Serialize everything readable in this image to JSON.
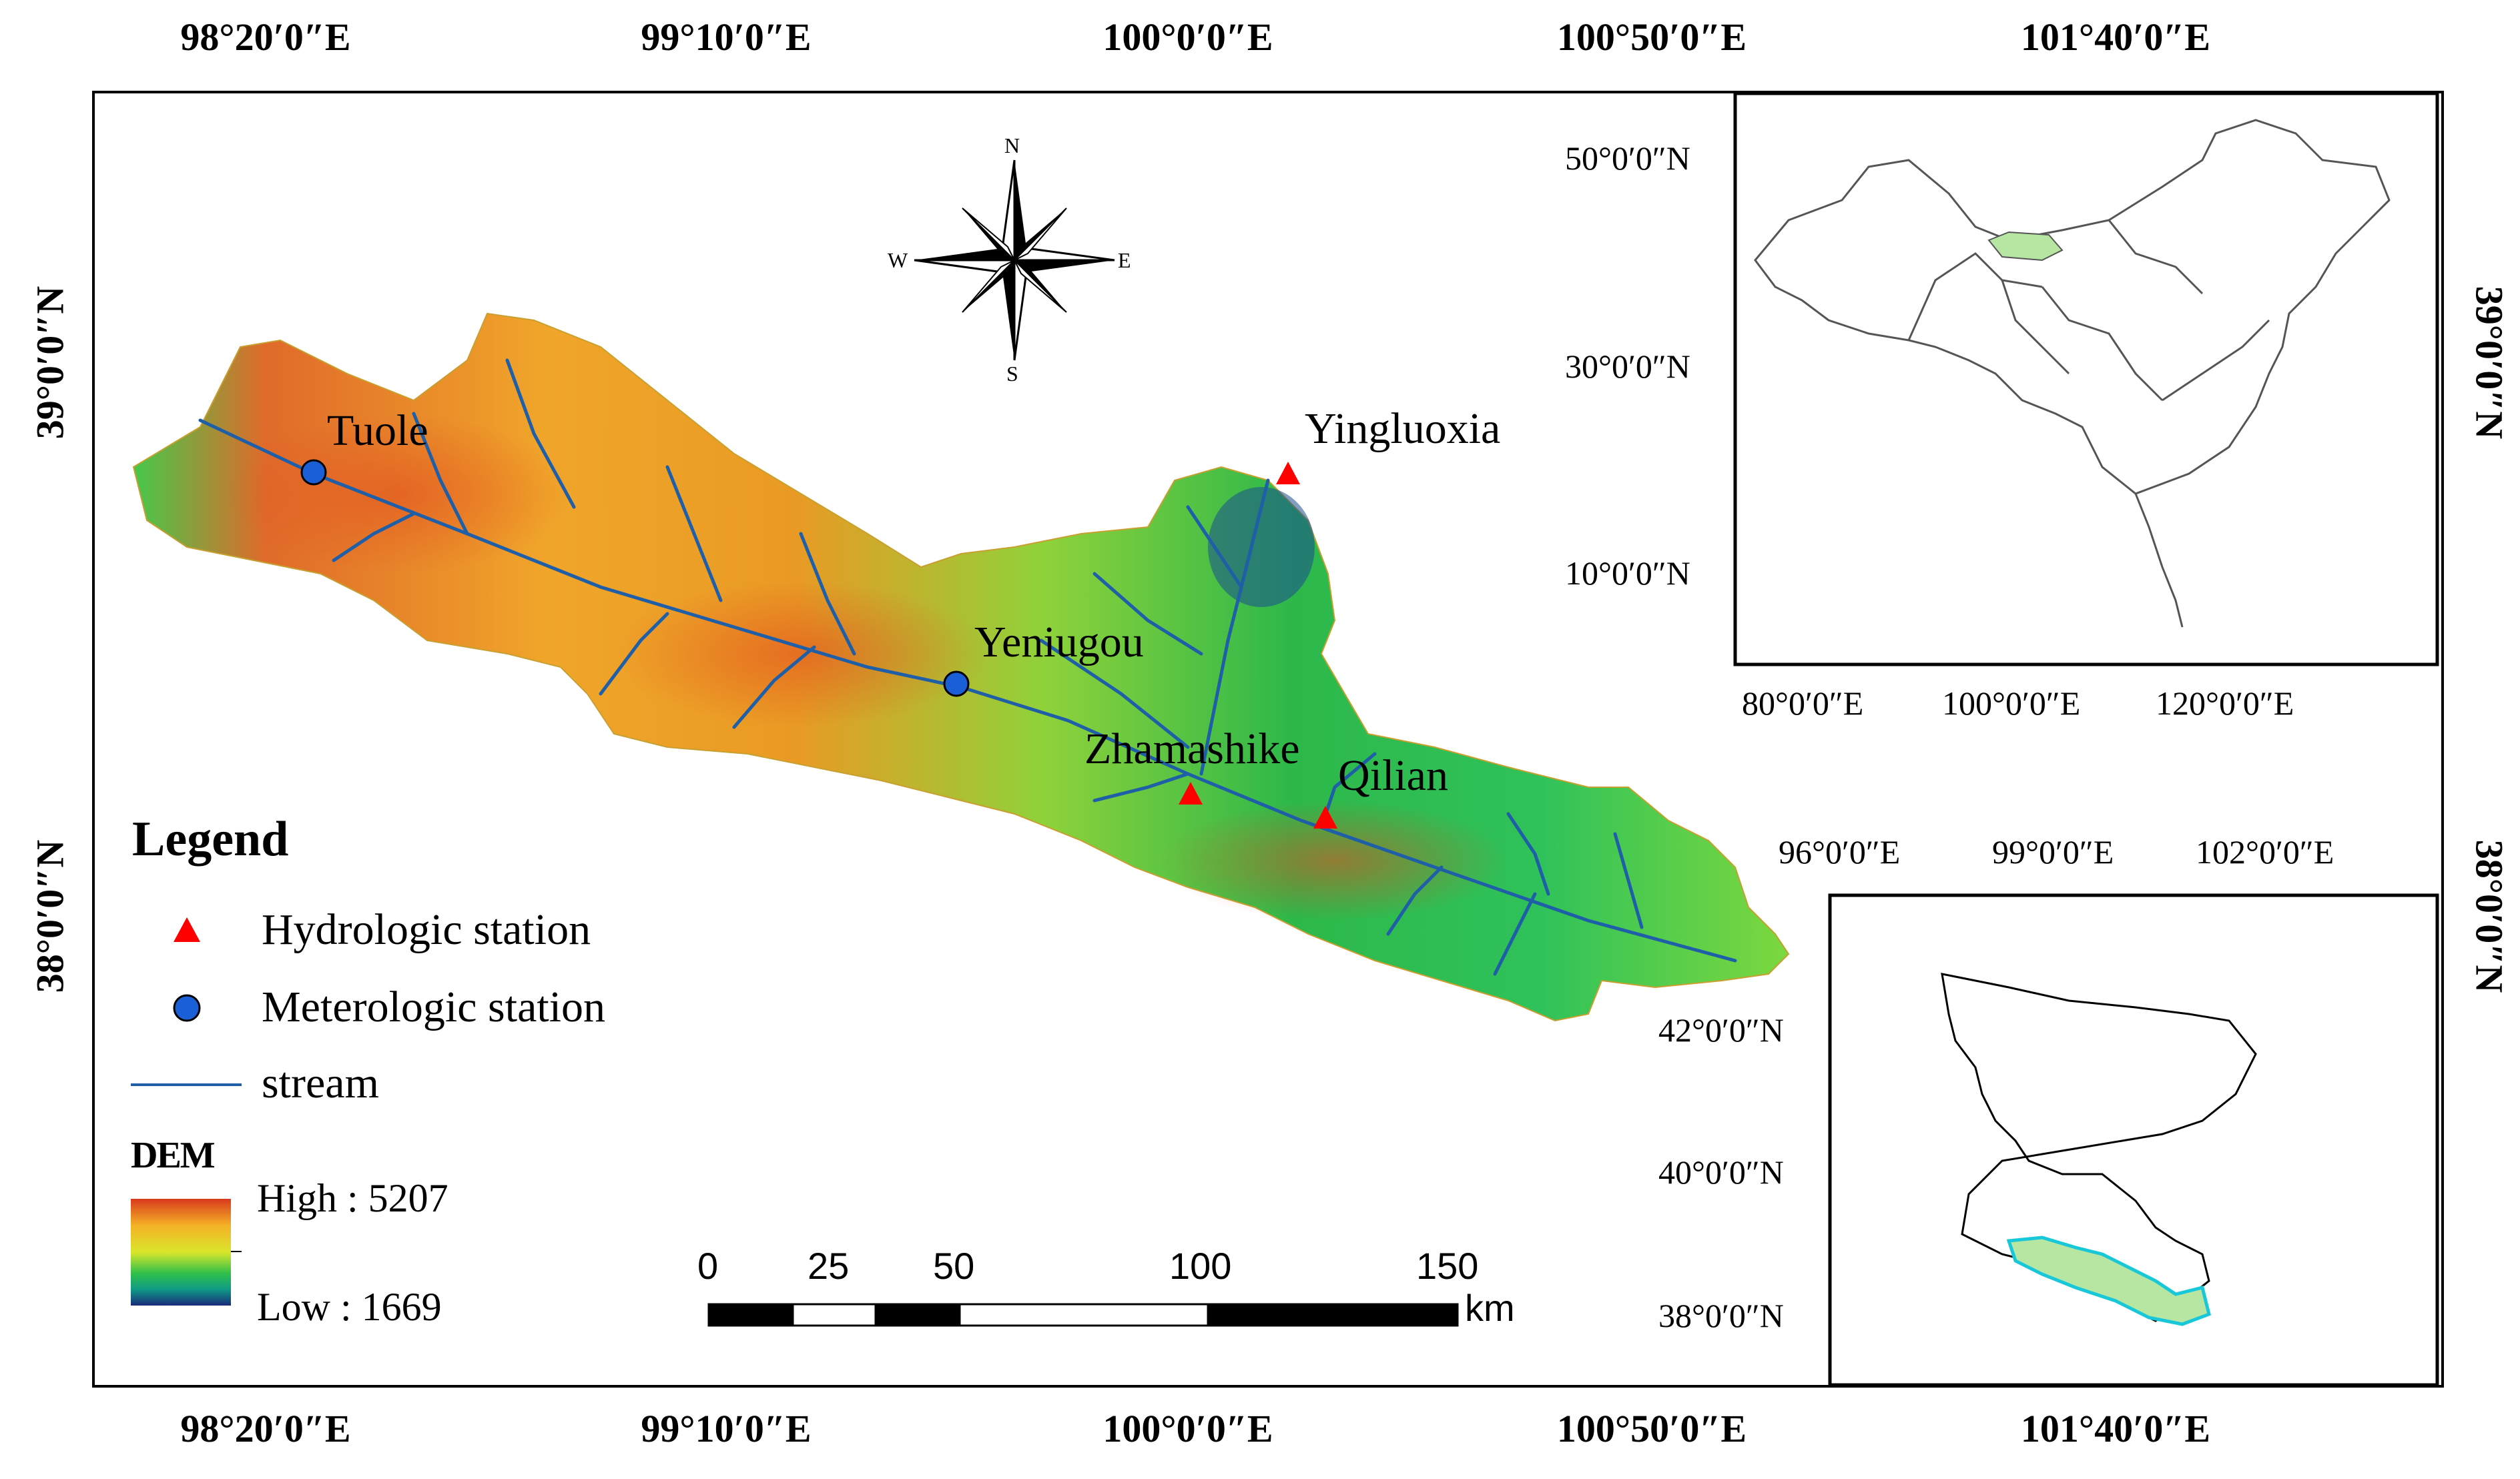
{
  "map": {
    "top_lon_labels": [
      "98°20′0″E",
      "99°10′0″E",
      "100°0′0″E",
      "100°50′0″E",
      "101°40′0″E"
    ],
    "bottom_lon_labels": [
      "98°20′0″E",
      "99°10′0″E",
      "100°0′0″E",
      "100°50′0″E",
      "101°40′0″E"
    ],
    "left_lat_labels": [
      "39°0′0″N",
      "38°0′0″N"
    ],
    "right_lat_labels": [
      "39°0′0″N",
      "38°0′0″N"
    ],
    "stations": {
      "tuole": "Tuole",
      "yingluoxia": "Yingluoxia",
      "yeniugou": "Yeniugou",
      "zhamashike": "Zhamashike",
      "qilian": "Qilian"
    },
    "north_arrow": {
      "n": "N",
      "s": "S",
      "e": "E",
      "w": "W"
    },
    "scale_bar": {
      "ticks": [
        "0",
        "25",
        "50",
        "100",
        "150"
      ],
      "unit": "km"
    }
  },
  "legend": {
    "title": "Legend",
    "hydrologic": "Hydrologic station",
    "meteorologic": "Meterologic station",
    "stream": "stream",
    "dem_title": "DEM",
    "dem_high": "High : 5207",
    "dem_low": "Low : 1669",
    "dem_high_value": 5207,
    "dem_low_value": 1669
  },
  "inset_china": {
    "lat_labels": [
      "50°0′0″N",
      "30°0′0″N",
      "10°0′0″N"
    ],
    "lon_labels": [
      "80°0′0″E",
      "100°0′0″E",
      "120°0′0″E"
    ]
  },
  "inset_region": {
    "lon_labels": [
      "96°0′0″E",
      "99°0′0″E",
      "102°0′0″E"
    ],
    "lat_labels": [
      "42°0′0″N",
      "40°0′0″N",
      "38°0′0″N"
    ]
  },
  "colors": {
    "hydrologic_marker": "#ff0000",
    "meteorologic_marker": "#1a5fd6",
    "stream": "#1f5fa8",
    "dem_high": "#d8391c",
    "dem_low": "#1a2a7a",
    "highlight_region": "#b7e6a3",
    "basin_outline": "#18c8d8"
  }
}
